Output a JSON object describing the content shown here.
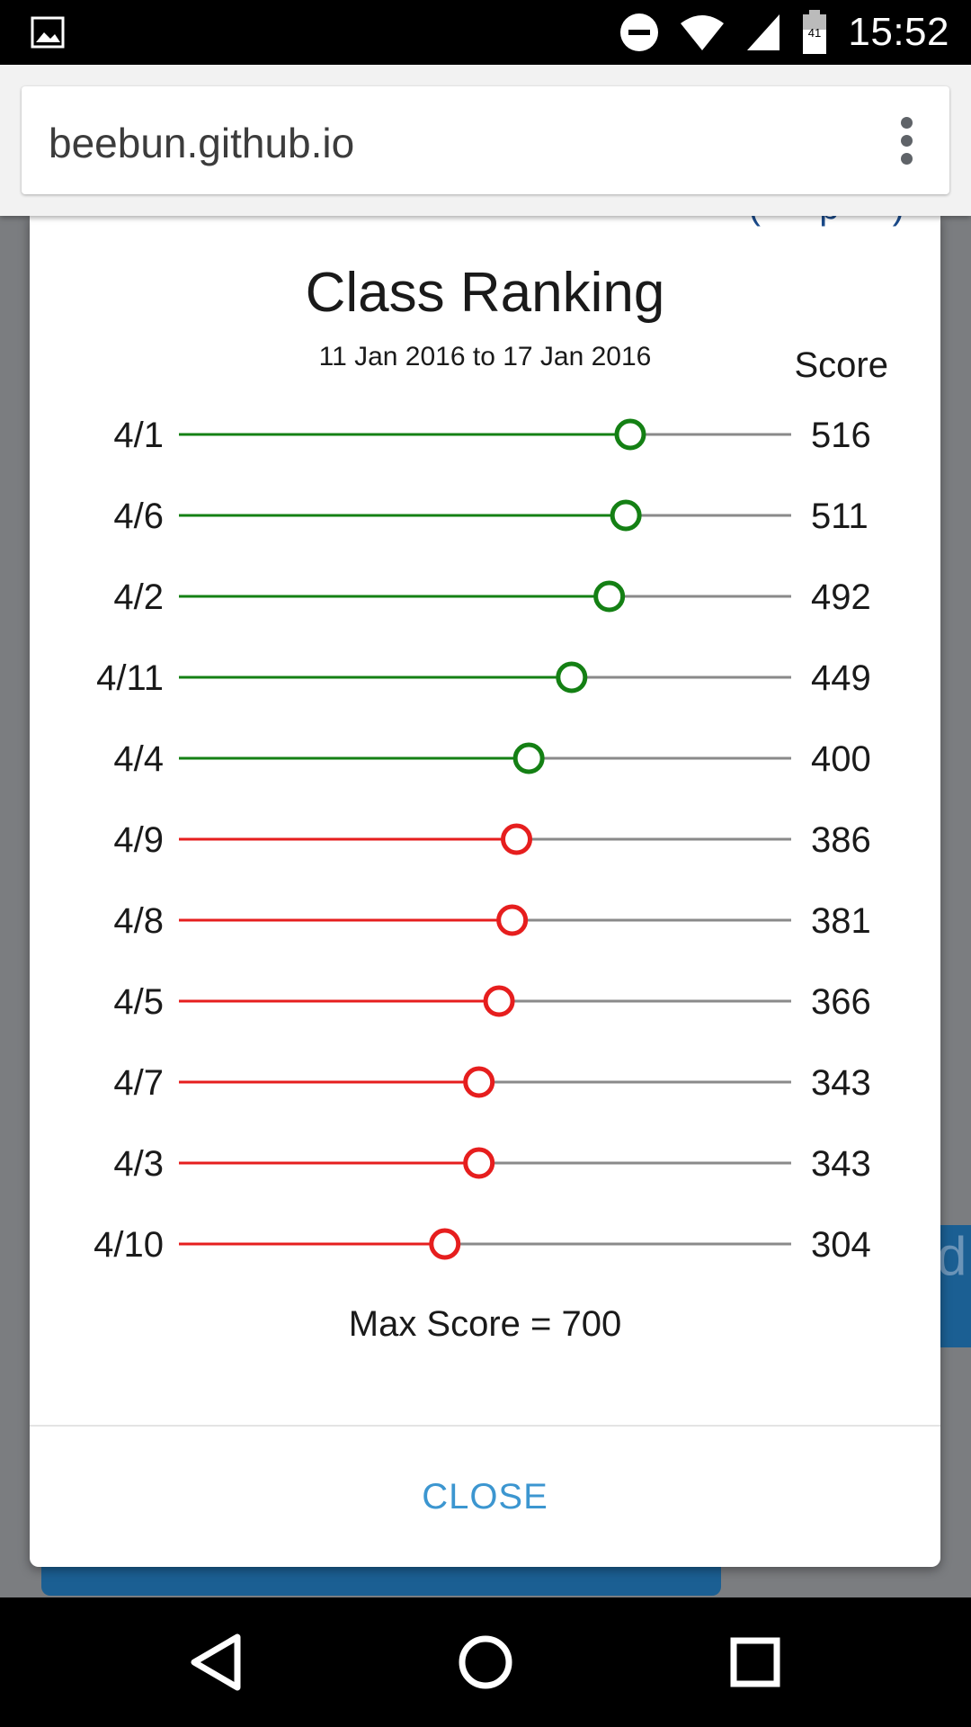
{
  "status_bar": {
    "time": "15:52",
    "battery_level": "41",
    "icons": [
      "gallery-icon",
      "do-not-disturb-icon",
      "wifi-icon",
      "cell-signal-icon",
      "battery-icon"
    ]
  },
  "browser": {
    "url": "beebun.github.io",
    "menu_icon": "more-vert-icon"
  },
  "dialog": {
    "title": "Class Ranking",
    "date_range": "11 Jan 2016 to 17 Jan 2016",
    "score_header": "Score",
    "max_score_label": "Max Score = 700",
    "close_label": "CLOSE"
  },
  "colors": {
    "above_threshold": "#148014",
    "below_threshold": "#e61e1e",
    "track": "#8a8a8a",
    "close_text": "#3c96d0"
  },
  "chart_data": {
    "type": "lollipop",
    "title": "Class Ranking",
    "subtitle": "11 Jan 2016 to 17 Jan 2016",
    "value_label": "Score",
    "max": 700,
    "categories": [
      "4/1",
      "4/6",
      "4/2",
      "4/11",
      "4/4",
      "4/9",
      "4/8",
      "4/5",
      "4/7",
      "4/3",
      "4/10"
    ],
    "values": [
      516,
      511,
      492,
      449,
      400,
      386,
      381,
      366,
      343,
      343,
      304
    ],
    "status": [
      "green",
      "green",
      "green",
      "green",
      "green",
      "red",
      "red",
      "red",
      "red",
      "red",
      "red"
    ]
  },
  "nav_bar": {
    "icons": [
      "back-icon",
      "home-icon",
      "recents-icon"
    ]
  }
}
